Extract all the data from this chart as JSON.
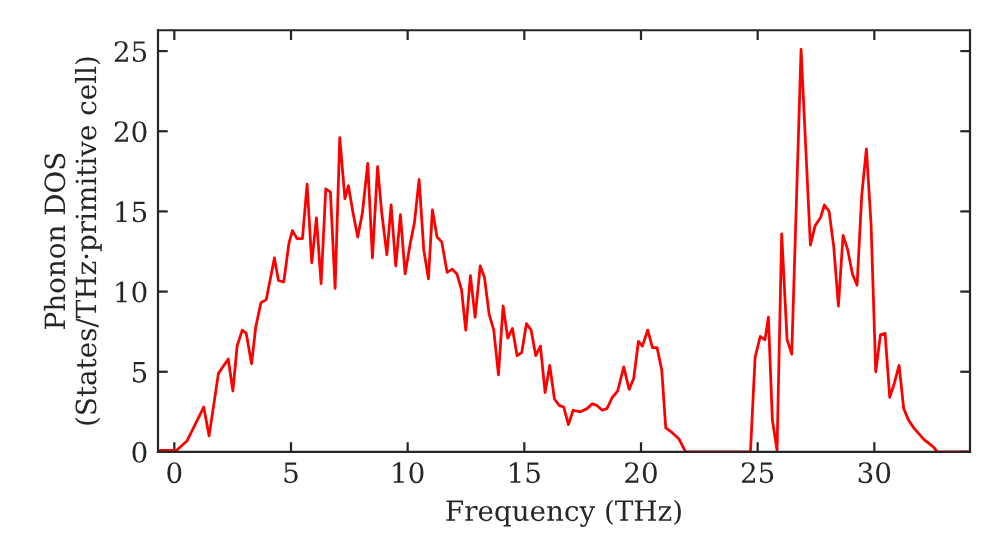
{
  "chart_data": {
    "type": "line",
    "xlabel": "Frequency (THz)",
    "ylabel": "Phonon DOS\n(States/THz·primitive cell)",
    "xlim": [
      -0.7,
      34.1
    ],
    "ylim": [
      0,
      26.3
    ],
    "xticks": [
      0,
      5,
      10,
      15,
      20,
      25,
      30
    ],
    "yticks": [
      0,
      5,
      10,
      15,
      20,
      25
    ],
    "grid": false,
    "legend": false,
    "series": [
      {
        "color": "#ff0000",
        "x": [
          -0.6,
          0.1,
          0.55,
          1.26,
          1.49,
          1.89,
          2.31,
          2.51,
          2.69,
          2.91,
          3.08,
          3.31,
          3.49,
          3.71,
          3.94,
          4.29,
          4.46,
          4.69,
          4.91,
          5.06,
          5.26,
          5.49,
          5.69,
          5.89,
          6.09,
          6.29,
          6.49,
          6.69,
          6.89,
          7.09,
          7.31,
          7.46,
          7.66,
          7.86,
          8.06,
          8.29,
          8.49,
          8.71,
          8.89,
          9.11,
          9.29,
          9.49,
          9.69,
          9.89,
          10.11,
          10.29,
          10.49,
          10.69,
          10.89,
          11.06,
          11.26,
          11.46,
          11.69,
          11.91,
          12.11,
          12.31,
          12.49,
          12.69,
          12.89,
          13.11,
          13.29,
          13.49,
          13.69,
          13.89,
          14.09,
          14.29,
          14.49,
          14.69,
          14.89,
          15.09,
          15.29,
          15.49,
          15.69,
          15.89,
          16.09,
          16.29,
          16.49,
          16.69,
          16.89,
          17.09,
          17.4,
          17.69,
          17.91,
          18.11,
          18.34,
          18.54,
          18.77,
          19.0,
          19.26,
          19.49,
          19.69,
          19.89,
          20.06,
          20.29,
          20.49,
          20.69,
          20.89,
          21.06,
          21.34,
          21.63,
          21.91,
          24.69,
          24.89,
          25.11,
          25.31,
          25.46,
          25.63,
          25.83,
          26.03,
          26.26,
          26.46,
          26.86,
          27.26,
          27.46,
          27.69,
          27.86,
          28.06,
          28.26,
          28.46,
          28.66,
          28.86,
          29.06,
          29.26,
          29.46,
          29.66,
          29.86,
          30.06,
          30.26,
          30.46,
          30.66,
          30.86,
          31.06,
          31.26,
          31.46,
          31.69,
          32.11,
          32.54,
          32.69,
          34.1
        ],
        "values": [
          0.1,
          0.1,
          0.7,
          2.8,
          1.0,
          4.9,
          5.8,
          3.8,
          6.6,
          7.6,
          7.4,
          5.5,
          7.8,
          9.3,
          9.5,
          12.1,
          10.7,
          10.6,
          13.0,
          13.8,
          13.3,
          13.3,
          16.7,
          11.8,
          14.6,
          10.5,
          16.4,
          16.2,
          10.2,
          19.6,
          15.8,
          16.6,
          14.9,
          13.4,
          14.9,
          18.0,
          12.1,
          17.8,
          14.9,
          12.3,
          15.4,
          11.6,
          14.8,
          11.1,
          13.0,
          14.3,
          17.0,
          12.6,
          10.8,
          15.1,
          13.4,
          13.1,
          11.2,
          11.4,
          11.1,
          10.1,
          7.6,
          11.0,
          8.4,
          11.6,
          10.9,
          8.6,
          7.6,
          4.8,
          9.1,
          7.1,
          7.7,
          6.0,
          6.2,
          8.0,
          7.6,
          6.0,
          6.6,
          3.7,
          5.4,
          3.3,
          2.9,
          2.8,
          1.7,
          2.6,
          2.5,
          2.7,
          3.0,
          2.9,
          2.6,
          2.7,
          3.4,
          3.8,
          5.3,
          3.9,
          4.6,
          6.9,
          6.6,
          7.6,
          6.5,
          6.5,
          5.1,
          1.5,
          1.2,
          0.8,
          0,
          0,
          5.9,
          7.2,
          7.0,
          8.4,
          2.0,
          0.1,
          13.6,
          7.0,
          6.1,
          25.1,
          12.9,
          14.1,
          14.6,
          15.4,
          15.0,
          12.8,
          9.1,
          13.5,
          12.6,
          11.1,
          10.4,
          16.0,
          18.9,
          14.2,
          5.0,
          7.3,
          7.4,
          3.4,
          4.3,
          5.4,
          2.7,
          2.0,
          1.5,
          0.8,
          0.3,
          0,
          0
        ]
      }
    ]
  }
}
